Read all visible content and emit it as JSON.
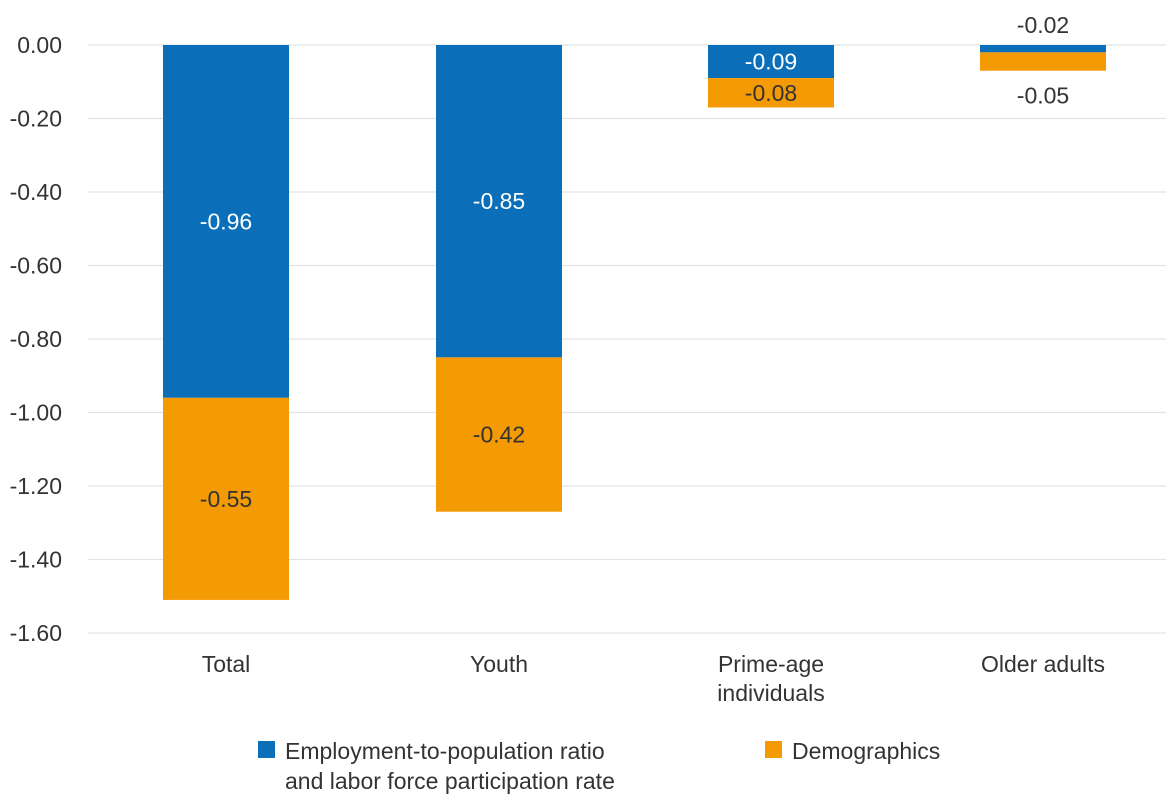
{
  "chart_data": {
    "type": "bar",
    "stacked": true,
    "categories": [
      "Total",
      "Youth",
      "Prime-age\nindividuals",
      "Older adults"
    ],
    "series": [
      {
        "name": "Employment-to-population ratio\nand labor force participation rate",
        "values": [
          -0.96,
          -0.85,
          -0.09,
          -0.02
        ],
        "labels": [
          "-0.96",
          "-0.85",
          "-0.09",
          "-0.02"
        ],
        "color": "#0a6eb8",
        "label_color": "#ffffff"
      },
      {
        "name": "Demographics",
        "values": [
          -0.55,
          -0.42,
          -0.08,
          -0.05
        ],
        "labels": [
          "-0.55",
          "-0.42",
          "-0.08",
          "-0.05"
        ],
        "color": "#f39a05",
        "label_color": "#333333"
      }
    ],
    "ylim": [
      -1.6,
      0.0
    ],
    "yticks": [
      0.0,
      -0.2,
      -0.4,
      -0.6,
      -0.8,
      -1.0,
      -1.2,
      -1.4,
      -1.6
    ],
    "ytick_labels": [
      "0.00",
      "-0.20",
      "-0.40",
      "-0.60",
      "-0.80",
      "-1.00",
      "-1.20",
      "-1.40",
      "-1.60"
    ],
    "grid": true,
    "legend_position": "bottom",
    "gridline_color": "#e3e3e3",
    "text_color": "#333333"
  }
}
